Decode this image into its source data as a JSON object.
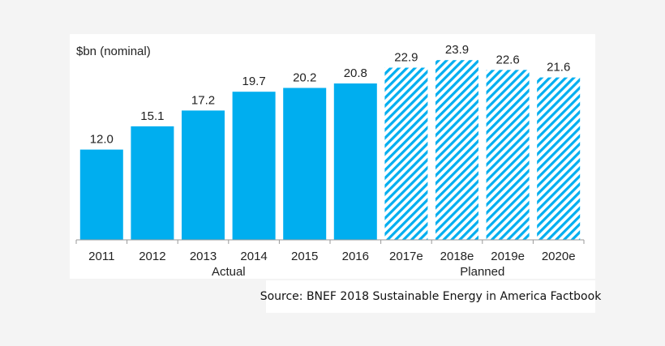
{
  "chart_data": {
    "type": "bar",
    "ylabel": "$bn (nominal)",
    "categories": [
      "2011",
      "2012",
      "2013",
      "2014",
      "2015",
      "2016",
      "2017e",
      "2018e",
      "2019e",
      "2020e"
    ],
    "values": [
      12.0,
      15.1,
      17.2,
      19.7,
      20.2,
      20.8,
      22.9,
      23.9,
      22.6,
      21.6
    ],
    "value_labels": [
      "12.0",
      "15.1",
      "17.2",
      "19.7",
      "20.2",
      "20.8",
      "22.9",
      "23.9",
      "22.6",
      "21.6"
    ],
    "ylim": [
      0,
      25
    ],
    "grid": false,
    "groups": [
      {
        "label": "Actual",
        "start": 0,
        "end": 5,
        "fill": "solid"
      },
      {
        "label": "Planned",
        "start": 6,
        "end": 9,
        "fill": "hatched"
      }
    ],
    "colors": {
      "bar": "#00aeef",
      "hatch": "#00aeef",
      "axis": "#999999"
    }
  },
  "source": "Source: BNEF 2018 Sustainable Energy in America Factbook"
}
